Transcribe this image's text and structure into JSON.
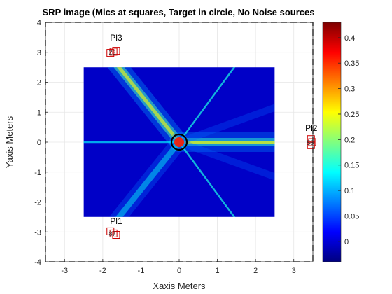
{
  "chart_data": {
    "type": "heatmap",
    "title": "SRP image (Mics at squares, Target in circle, No Noise sources",
    "xlabel": "Xaxis Meters",
    "ylabel": "Yaxis Meters",
    "xlim": [
      -3.5,
      3.5
    ],
    "ylim": [
      -4,
      4
    ],
    "x_ticks": [
      "-3",
      "-2",
      "-1",
      "0",
      "1",
      "2",
      "3"
    ],
    "x_tick_values": [
      -3,
      -2,
      -1,
      0,
      1,
      2,
      3
    ],
    "y_ticks": [
      "-4",
      "-3",
      "-2",
      "-1",
      "0",
      "1",
      "2",
      "3",
      "4"
    ],
    "y_tick_values": [
      -4,
      -3,
      -2,
      -1,
      0,
      1,
      2,
      3,
      4
    ],
    "grid": true,
    "heatmap_extent": {
      "x": [
        -2.5,
        2.5
      ],
      "y": [
        -2.5,
        2.5
      ]
    },
    "colorbar": {
      "limits": [
        -0.04,
        0.43
      ],
      "ticks": [
        "0",
        "0.05",
        "0.1",
        "0.15",
        "0.2",
        "0.25",
        "0.3",
        "0.35",
        "0.4"
      ],
      "tick_values": [
        0,
        0.05,
        0.1,
        0.15,
        0.2,
        0.25,
        0.3,
        0.35,
        0.4
      ],
      "colormap": "jet"
    },
    "room_boundary": {
      "x": [
        -3.5,
        3.5
      ],
      "y": [
        -4,
        4
      ],
      "style": "dashed",
      "color": "#555555"
    },
    "target": {
      "x": 0,
      "y": 0,
      "color": "#000000"
    },
    "mic_arrays": [
      {
        "label": "Pl1",
        "mics": [
          [
            -1.8,
            -2.98
          ],
          [
            -1.72,
            -3.05
          ],
          [
            -1.65,
            -3.1
          ]
        ],
        "mic_labels": [
          "8",
          "7"
        ]
      },
      {
        "label": "Pl2",
        "mics": [
          [
            3.45,
            0.1
          ],
          [
            3.48,
            0.0
          ],
          [
            3.45,
            -0.1
          ]
        ],
        "mic_labels": [
          "5",
          "6"
        ]
      },
      {
        "label": "Pl3",
        "mics": [
          [
            -1.8,
            2.98
          ],
          [
            -1.72,
            3.02
          ],
          [
            -1.65,
            3.05
          ]
        ],
        "mic_labels": [
          "2",
          "3"
        ]
      }
    ],
    "mic_color": "#cc0000"
  }
}
